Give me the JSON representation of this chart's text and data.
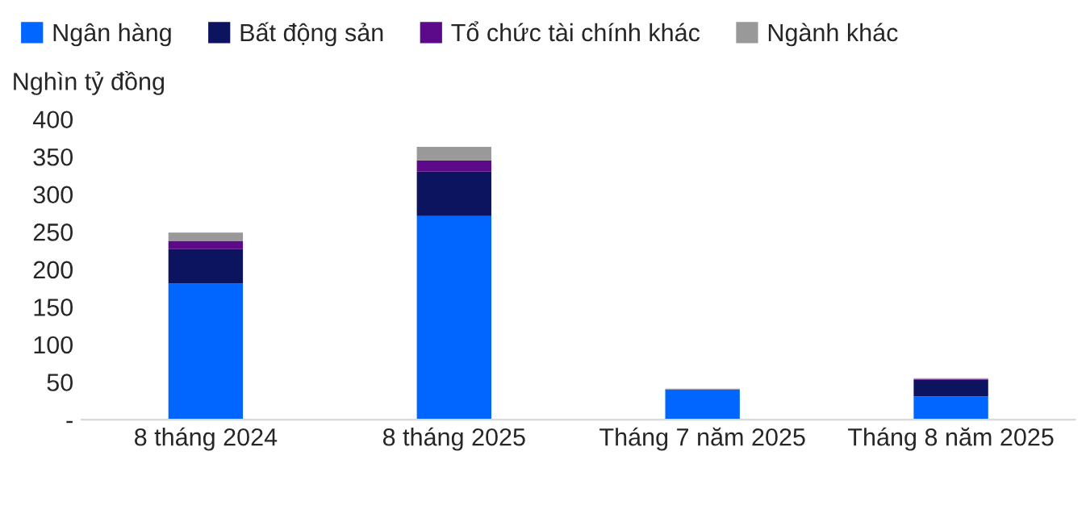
{
  "chart_data": {
    "type": "bar",
    "stacked": true,
    "ylabel": "Nghìn tỷ đồng",
    "categories": [
      "8 tháng 2024",
      "8 tháng 2025",
      "Tháng 7 năm 2025",
      "Tháng 8 năm 2025"
    ],
    "series": [
      {
        "name": "Ngân hàng",
        "color": "#0066ff",
        "values": [
          181,
          271,
          39,
          31
        ]
      },
      {
        "name": "Bất động sản",
        "color": "#0c1460",
        "values": [
          46,
          59,
          null,
          22
        ]
      },
      {
        "name": "Tổ chức tài chính khác",
        "color": "#5c0a8a",
        "values": [
          11,
          15,
          1,
          1
        ]
      },
      {
        "name": "Ngành khác",
        "color": "#999999",
        "values": [
          11,
          18,
          1,
          1
        ]
      }
    ],
    "ylim": [
      0,
      400
    ],
    "yticks": [
      {
        "value": 0,
        "label": "-"
      },
      50,
      100,
      150,
      200,
      250,
      300,
      350,
      400
    ],
    "grid": false,
    "legend": "top"
  }
}
